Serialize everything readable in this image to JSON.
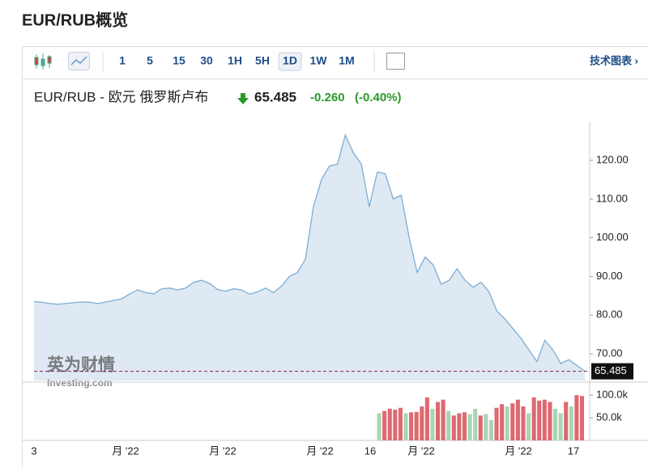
{
  "header": {
    "title": "EUR/RUB概览"
  },
  "toolbar": {
    "intervals": [
      "1",
      "5",
      "15",
      "30",
      "1H",
      "5H",
      "1D",
      "1W",
      "1M"
    ],
    "active": "1D",
    "link": "技术图表 ›"
  },
  "chart_data": {
    "type": "area",
    "title": "EUR/RUB - 欧元 俄罗斯卢布",
    "price": 65.485,
    "change": {
      "value": -0.26,
      "label": "-0.260"
    },
    "change_pct": {
      "value": -0.4,
      "label": "(-0.40%)"
    },
    "watermark": [
      "英为财情",
      "Investing.com"
    ],
    "x_labels": [
      "3",
      "月 '22",
      "月 '22",
      "月 '22",
      "16",
      "月 '22",
      "月 '22",
      "17"
    ],
    "line": {
      "color": "#7aaed6",
      "fill": "#dfe9f3",
      "values": [
        83.5,
        83.3,
        83,
        82.8,
        83,
        83.2,
        83.4,
        83.3,
        83,
        83.4,
        83.8,
        84.2,
        85.5,
        86.5,
        85.8,
        85.5,
        86.8,
        87,
        86.5,
        87,
        88.5,
        89,
        88.2,
        86.6,
        86.2,
        86.8,
        86.5,
        85.4,
        86,
        87,
        85.8,
        87.5,
        90,
        91,
        94.5,
        108,
        115,
        118.5,
        119,
        126.5,
        122,
        119,
        108,
        117,
        116.5,
        110,
        111,
        100,
        91,
        95,
        93,
        88,
        89,
        92,
        89,
        87.2,
        88.5,
        86,
        81,
        79,
        76.5,
        74,
        71,
        68,
        73.5,
        71,
        67.5,
        68.5,
        67,
        65.5
      ]
    },
    "ylim": [
      63.1,
      129
    ],
    "yticks": [
      {
        "value": 70,
        "label": "70.00"
      },
      {
        "value": 80,
        "label": "80.00"
      },
      {
        "value": 90,
        "label": "90.00"
      },
      {
        "value": 100,
        "label": "100.00"
      },
      {
        "value": 110,
        "label": "110.00"
      },
      {
        "value": 120,
        "label": "120.00"
      }
    ],
    "volume": {
      "values": [
        60000,
        65000,
        70000,
        68000,
        72000,
        60000,
        62000,
        63000,
        75000,
        95000,
        70000,
        85000,
        90000,
        65000,
        55000,
        60000,
        62000,
        58000,
        70000,
        55000,
        58000,
        45000,
        72000,
        80000,
        75000,
        82000,
        90000,
        75000,
        60000,
        95000,
        88000,
        90000,
        85000,
        70000,
        60000,
        85000,
        75000,
        100000,
        98000
      ],
      "colors": [
        "#a8d5b5",
        "#e06870",
        "#e06870",
        "#e06870",
        "#e06870",
        "#a8d5b5",
        "#e06870",
        "#e06870",
        "#e06870",
        "#e06870",
        "#a8d5b5",
        "#e06870",
        "#e06870",
        "#a8d5b5",
        "#e06870",
        "#e06870",
        "#e06870",
        "#a8d5b5",
        "#a8d5b5",
        "#e06870",
        "#a8d5b5",
        "#a8d5b5",
        "#e06870",
        "#e06870",
        "#a8d5b5",
        "#e06870",
        "#e06870",
        "#e06870",
        "#a8d5b5",
        "#e06870",
        "#e06870",
        "#e06870",
        "#e06870",
        "#a8d5b5",
        "#a8d5b5",
        "#e06870",
        "#a8d5b5",
        "#e06870",
        "#e06870"
      ],
      "ylim": [
        0,
        118000
      ],
      "yticks": [
        {
          "value": 50000,
          "label": "50.0k"
        },
        {
          "value": 100000,
          "label": "100.0k"
        }
      ]
    }
  }
}
